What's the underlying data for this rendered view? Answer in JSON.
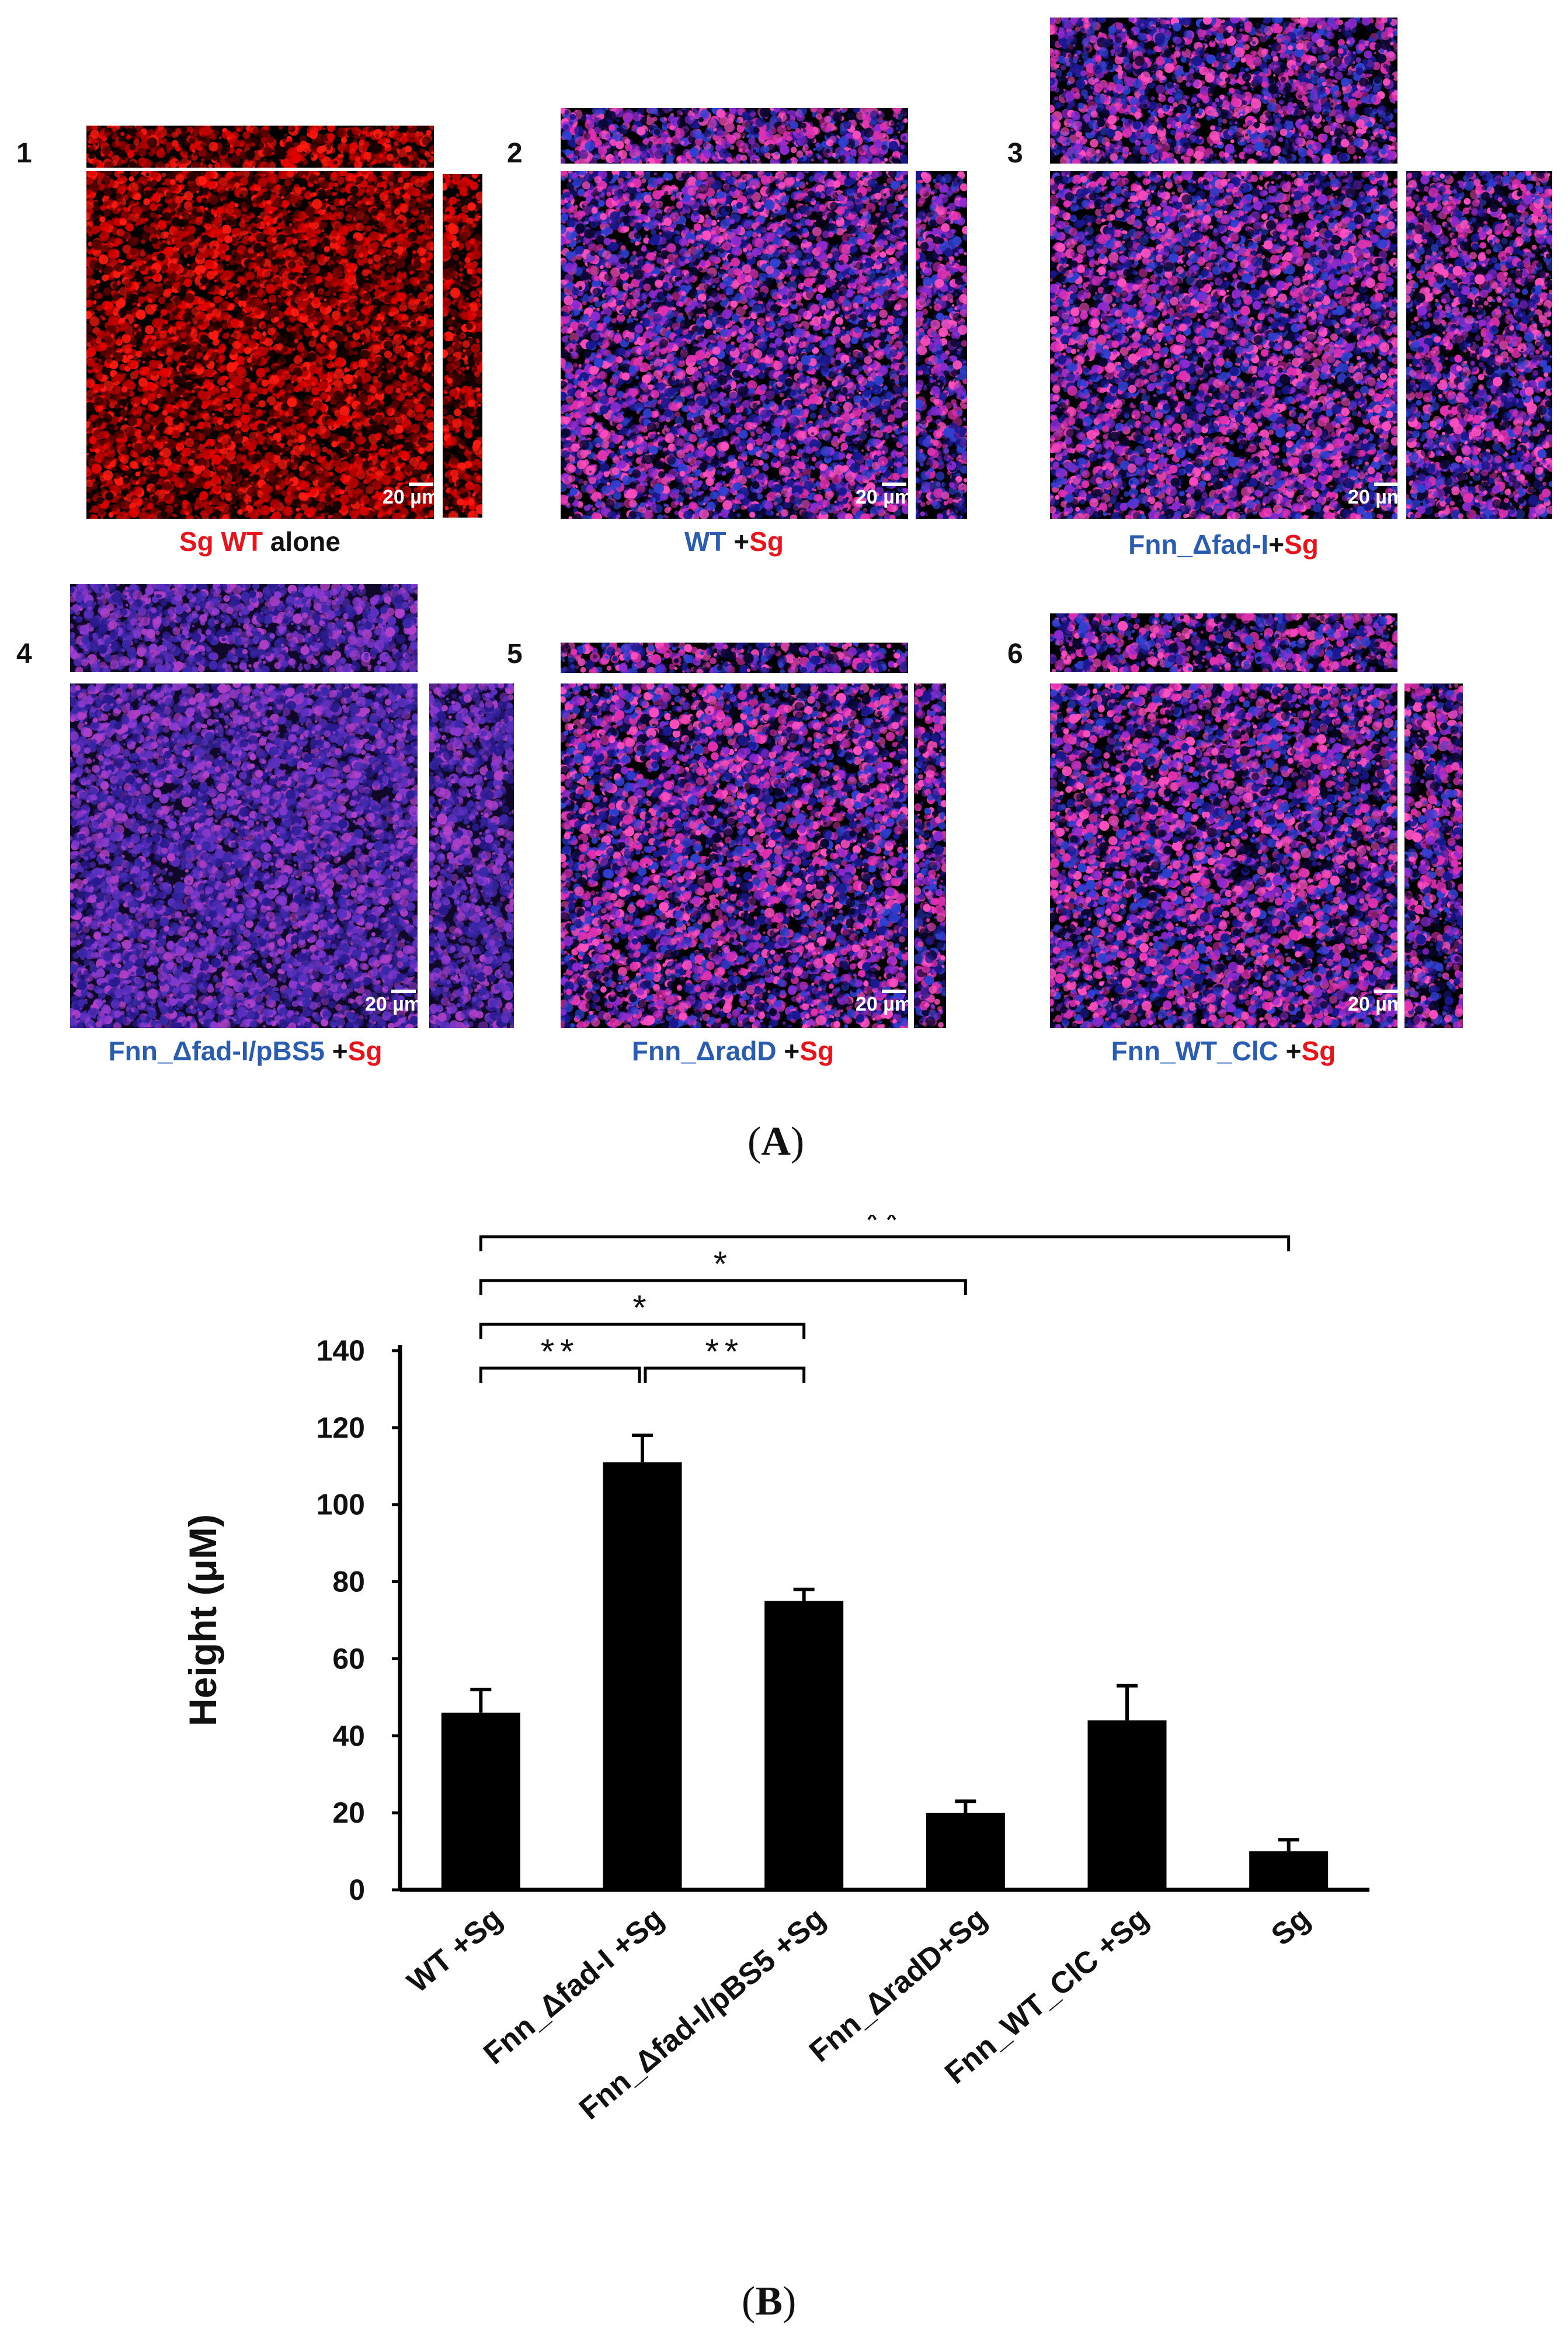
{
  "panel_a": {
    "letter": "A",
    "panels": [
      {
        "num": "1",
        "caption": [
          {
            "t": "Sg",
            "c": "red"
          },
          {
            "t": " WT",
            "c": "red"
          },
          {
            "t": " alone",
            "c": "black"
          }
        ],
        "scale": "20 µm",
        "palette": "red"
      },
      {
        "num": "2",
        "caption": [
          {
            "t": "WT",
            "c": "blue"
          },
          {
            "t": " +",
            "c": "black"
          },
          {
            "t": "Sg",
            "c": "red"
          }
        ],
        "scale": "20 µm",
        "palette": "mix"
      },
      {
        "num": "3",
        "caption": [
          {
            "t": "Fnn_Δfad-I",
            "c": "blue"
          },
          {
            "t": "+",
            "c": "black"
          },
          {
            "t": "Sg",
            "c": "red"
          }
        ],
        "scale": "20 µm",
        "palette": "mix"
      },
      {
        "num": "4",
        "caption": [
          {
            "t": "Fnn_Δfad-I/pBS5",
            "c": "blue"
          },
          {
            "t": " +",
            "c": "black"
          },
          {
            "t": "Sg",
            "c": "red"
          }
        ],
        "scale": "20 µm",
        "palette": "purple"
      },
      {
        "num": "5",
        "caption": [
          {
            "t": "Fnn_ΔradD",
            "c": "blue"
          },
          {
            "t": " +",
            "c": "black"
          },
          {
            "t": "Sg",
            "c": "red"
          }
        ],
        "scale": "20 µm",
        "palette": "mix"
      },
      {
        "num": "6",
        "caption": [
          {
            "t": "Fnn_WT_ClC",
            "c": "blue"
          },
          {
            "t": " +",
            "c": "black"
          },
          {
            "t": "Sg",
            "c": "red"
          }
        ],
        "scale": "20 µm",
        "palette": "mix"
      }
    ]
  },
  "panel_b": {
    "letter": "B"
  },
  "chart_data": {
    "type": "bar",
    "title": "",
    "xlabel": "",
    "ylabel": "Height (μM)",
    "ylim": [
      0,
      140
    ],
    "yticks": [
      0,
      20,
      40,
      60,
      80,
      100,
      120,
      140
    ],
    "categories": [
      "WT +Sg",
      "Fnn_Δfad-I +Sg",
      "Fnn_Δfad-I/pBS5 +Sg",
      "Fnn_ΔradD+Sg",
      "Fnn_WT_ClC +Sg",
      "Sg"
    ],
    "values": [
      46,
      111,
      75,
      20,
      44,
      10
    ],
    "errors": [
      6,
      7,
      3,
      3,
      9,
      3
    ],
    "bar_color": "#000000",
    "significance": [
      {
        "from": 0,
        "to": 1,
        "label": "**"
      },
      {
        "from": 1,
        "to": 2,
        "label": "**"
      },
      {
        "from": 0,
        "to": 2,
        "label": "*"
      },
      {
        "from": 0,
        "to": 3,
        "label": "*"
      },
      {
        "from": 0,
        "to": 5,
        "label": "**"
      }
    ]
  }
}
